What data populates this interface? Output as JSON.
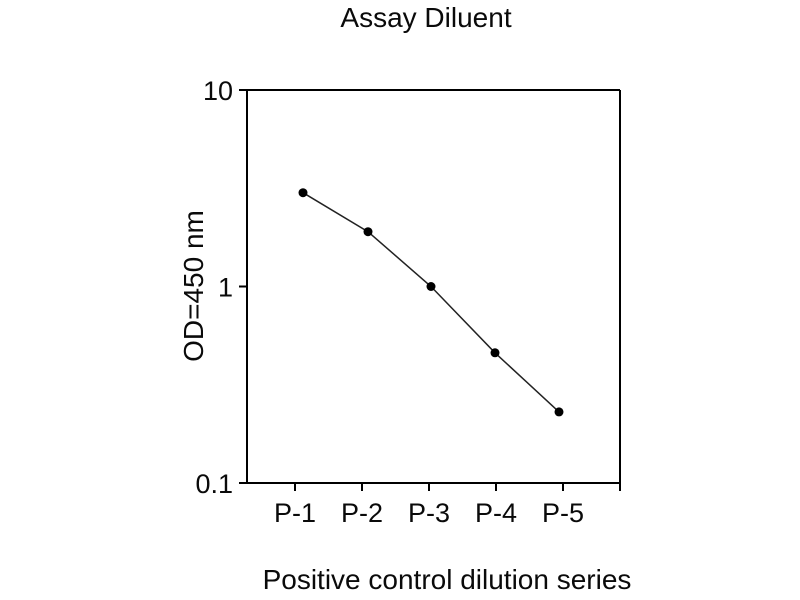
{
  "chart_data": {
    "type": "line",
    "title": "Assay Diluent",
    "xlabel": "Positive control dilution series",
    "ylabel": "OD=450 nm",
    "categories": [
      "P-1",
      "P-2",
      "P-3",
      "P-4",
      "P-5"
    ],
    "series": [
      {
        "name": "Positive control dilution series",
        "values": [
          3.0,
          1.9,
          1.0,
          0.46,
          0.23
        ]
      }
    ],
    "yscale": "log",
    "ylim": [
      0.1,
      10
    ],
    "yticks": [
      {
        "value": 10,
        "label": "10"
      },
      {
        "value": 1,
        "label": "1"
      },
      {
        "value": 0.1,
        "label": "0.1"
      }
    ],
    "grid": false,
    "legend": "none",
    "marker": "filled-circle",
    "colors": {
      "line": "#222222",
      "marker": "#000000",
      "axis": "#000000",
      "text": "#0a0a0a",
      "background": "#ffffff"
    }
  }
}
